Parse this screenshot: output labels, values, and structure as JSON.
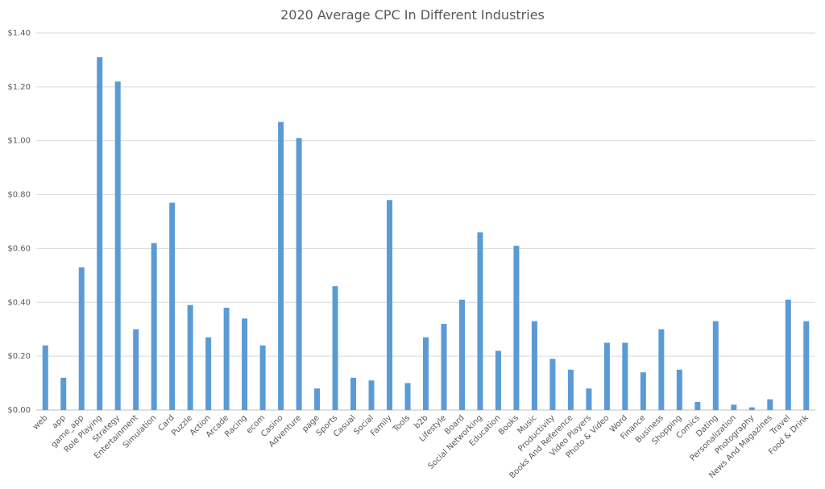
{
  "chart_data": {
    "type": "bar",
    "title": "2020 Average CPC In Different Industries",
    "xlabel": "",
    "ylabel": "",
    "ylim": [
      0,
      1.4
    ],
    "yticks": [
      "$0.00",
      "$0.20",
      "$0.40",
      "$0.60",
      "$0.80",
      "$1.00",
      "$1.20",
      "$1.40"
    ],
    "grid": true,
    "bar_color": "#5b9bd5",
    "categories": [
      "web",
      "app",
      "game_app",
      "Role Playing",
      "Strategy",
      "Entertainment",
      "Simulation",
      "Card",
      "Puzzle",
      "Action",
      "Arcade",
      "Racing",
      "ecom",
      "Casino",
      "Adventure",
      "page",
      "Sports",
      "Casual",
      "Social",
      "Family",
      "Tools",
      "b2b",
      "Lifestyle",
      "Board",
      "Social Networking",
      "Education",
      "Books",
      "Music",
      "Productivity",
      "Books And Reference",
      "Video Players",
      "Photo & Video",
      "Word",
      "Finance",
      "Business",
      "Shopping",
      "Comics",
      "Dating",
      "Personalization",
      "Photography",
      "News And Magazines",
      "Travel",
      "Food & Drink"
    ],
    "values": [
      0.24,
      0.12,
      0.53,
      1.31,
      1.22,
      0.3,
      0.62,
      0.77,
      0.39,
      0.27,
      0.38,
      0.34,
      0.24,
      1.07,
      1.01,
      0.08,
      0.46,
      0.12,
      0.11,
      0.78,
      0.1,
      0.27,
      0.32,
      0.41,
      0.66,
      0.22,
      0.61,
      0.33,
      0.19,
      0.15,
      0.08,
      0.25,
      0.25,
      0.14,
      0.3,
      0.15,
      0.03,
      0.33,
      0.02,
      0.01,
      0.04,
      0.41,
      0.33
    ]
  }
}
